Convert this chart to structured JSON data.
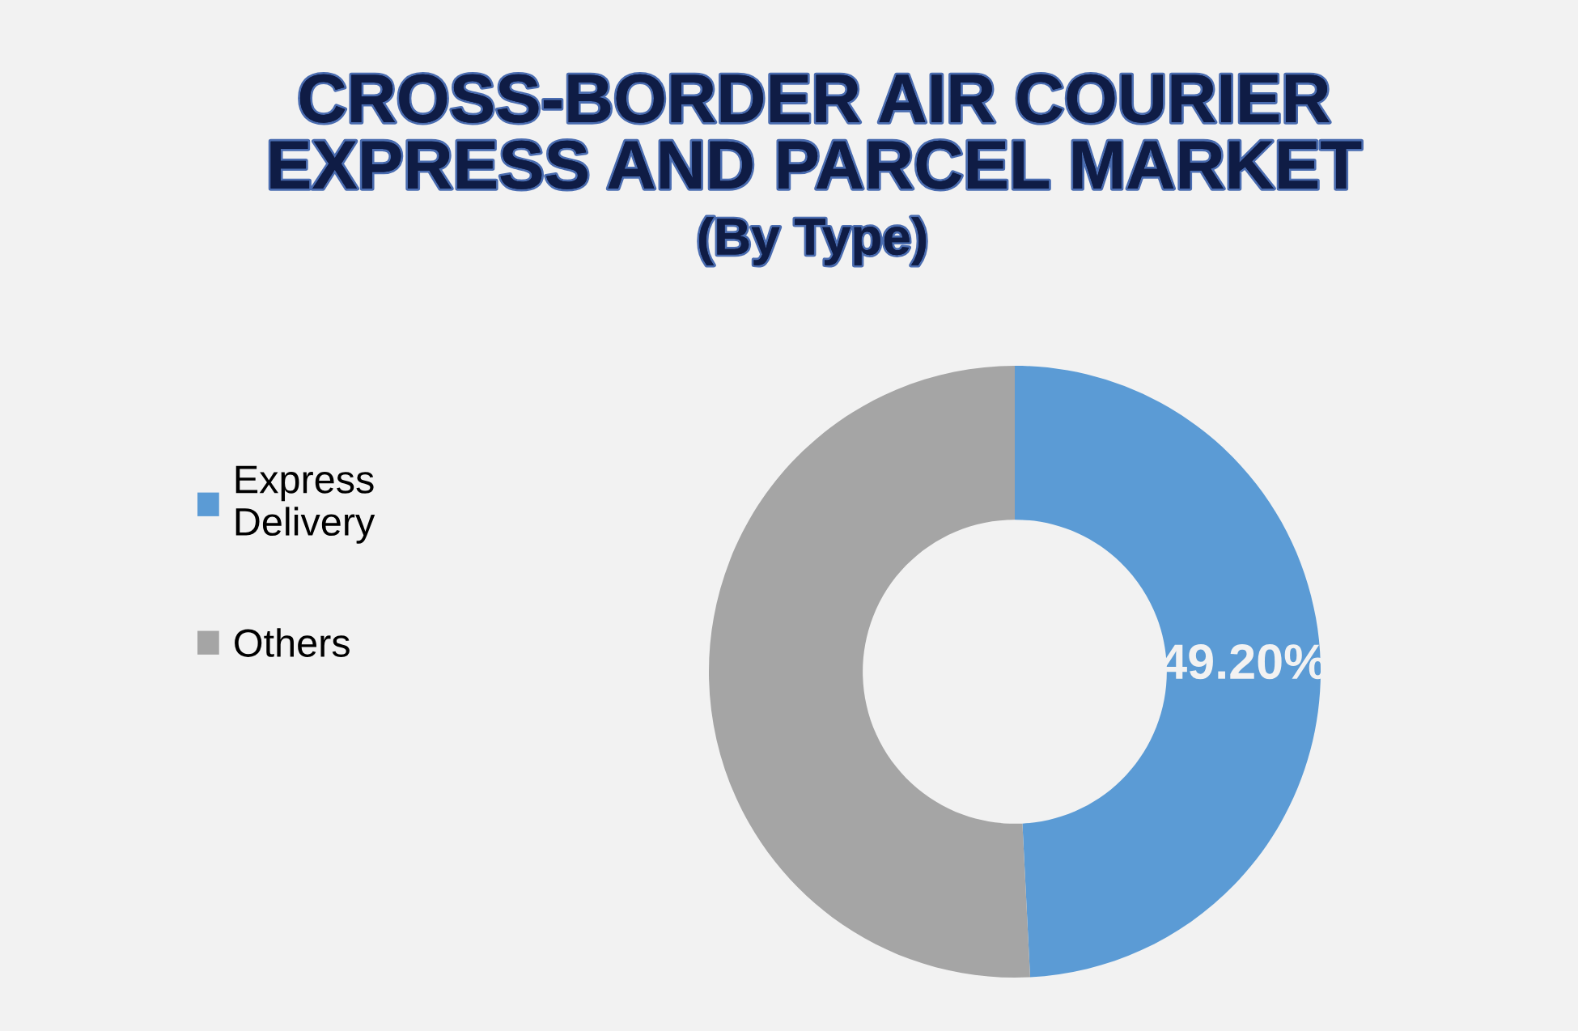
{
  "chart_data": {
    "type": "donut",
    "title": "CROSS-BORDER AIR COURIER EXPRESS AND PARCEL MARKET",
    "subtitle": "(By Type)",
    "categories": [
      "Express Delivery",
      "Others"
    ],
    "values": [
      49.2,
      50.8
    ],
    "colors": [
      "#5b9bd5",
      "#a5a5a5"
    ],
    "value_labels": [
      "49.20%",
      null
    ],
    "legend": "left"
  }
}
